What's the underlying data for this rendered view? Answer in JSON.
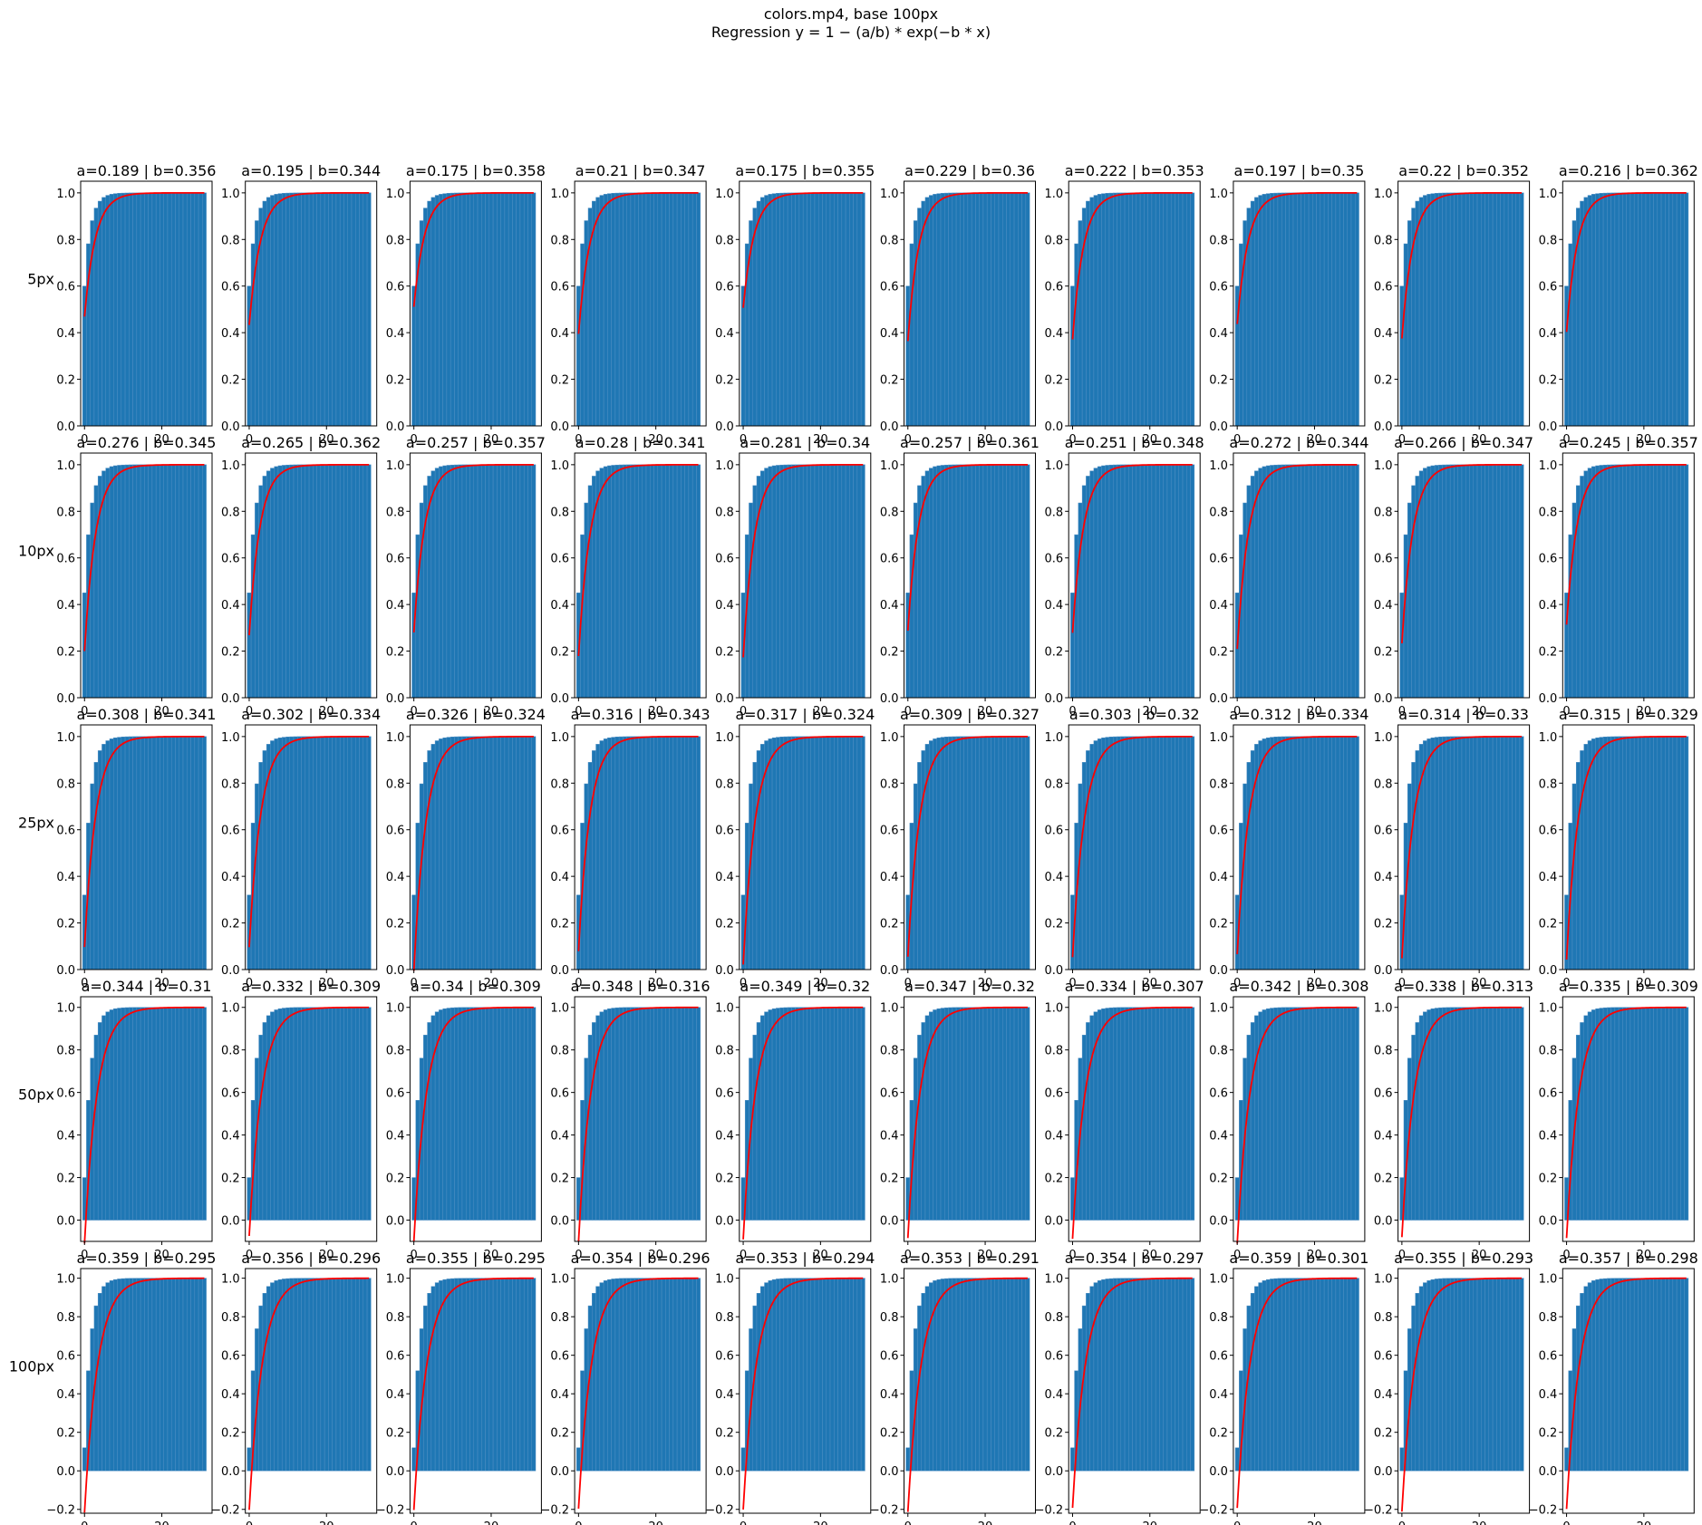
{
  "title_line1": "colors.mp4, base 100px",
  "title_line2": "Regression y = 1 − (a/b) * exp(−b * x)",
  "colors": {
    "bar": "#1f77b4",
    "bar_edge": "#4f8fc4",
    "fit": "#ff0000",
    "axis": "#000000"
  },
  "chart_data": {
    "type": "bar",
    "layout": "small multiples, 5 rows x 10 columns",
    "description_of_series": "cumulative bars over x = 0..32 with red fitted exponential curve",
    "x": {
      "ticks": [
        0,
        20
      ],
      "range": [
        -1,
        33
      ],
      "bar_count": 32
    },
    "rows": [
      {
        "label": "5px",
        "ylim": [
          0,
          1.05
        ],
        "yticks": [
          "0.0",
          "0.2",
          "0.4",
          "0.6",
          "0.8",
          "1.0"
        ],
        "first_bar": 0.6,
        "panels": [
          {
            "title": "a=0.189 | b=0.356",
            "a": 0.189,
            "b": 0.356
          },
          {
            "title": "a=0.195 | b=0.344",
            "a": 0.195,
            "b": 0.344
          },
          {
            "title": "a=0.175 | b=0.358",
            "a": 0.175,
            "b": 0.358
          },
          {
            "title": "a=0.21 | b=0.347",
            "a": 0.21,
            "b": 0.347
          },
          {
            "title": "a=0.175 | b=0.355",
            "a": 0.175,
            "b": 0.355
          },
          {
            "title": "a=0.229 | b=0.36",
            "a": 0.229,
            "b": 0.36
          },
          {
            "title": "a=0.222 | b=0.353",
            "a": 0.222,
            "b": 0.353
          },
          {
            "title": "a=0.197 | b=0.35",
            "a": 0.197,
            "b": 0.35
          },
          {
            "title": "a=0.22 | b=0.352",
            "a": 0.22,
            "b": 0.352
          },
          {
            "title": "a=0.216 | b=0.362",
            "a": 0.216,
            "b": 0.362
          }
        ]
      },
      {
        "label": "10px",
        "ylim": [
          0,
          1.05
        ],
        "yticks": [
          "0.0",
          "0.2",
          "0.4",
          "0.6",
          "0.8",
          "1.0"
        ],
        "first_bar": 0.45,
        "panels": [
          {
            "title": "a=0.276 | b=0.345",
            "a": 0.276,
            "b": 0.345
          },
          {
            "title": "a=0.265 | b=0.362",
            "a": 0.265,
            "b": 0.362
          },
          {
            "title": "a=0.257 | b=0.357",
            "a": 0.257,
            "b": 0.357
          },
          {
            "title": "a=0.28 | b=0.341",
            "a": 0.28,
            "b": 0.341
          },
          {
            "title": "a=0.281 | b=0.34",
            "a": 0.281,
            "b": 0.34
          },
          {
            "title": "a=0.257 | b=0.361",
            "a": 0.257,
            "b": 0.361
          },
          {
            "title": "a=0.251 | b=0.348",
            "a": 0.251,
            "b": 0.348
          },
          {
            "title": "a=0.272 | b=0.344",
            "a": 0.272,
            "b": 0.344
          },
          {
            "title": "a=0.266 | b=0.347",
            "a": 0.266,
            "b": 0.347
          },
          {
            "title": "a=0.245 | b=0.357",
            "a": 0.245,
            "b": 0.357
          }
        ]
      },
      {
        "label": "25px",
        "ylim": [
          0,
          1.05
        ],
        "yticks": [
          "0.0",
          "0.2",
          "0.4",
          "0.6",
          "0.8",
          "1.0"
        ],
        "first_bar": 0.32,
        "panels": [
          {
            "title": "a=0.308 | b=0.341",
            "a": 0.308,
            "b": 0.341
          },
          {
            "title": "a=0.302 | b=0.334",
            "a": 0.302,
            "b": 0.334
          },
          {
            "title": "a=0.326 | b=0.324",
            "a": 0.326,
            "b": 0.324
          },
          {
            "title": "a=0.316 | b=0.343",
            "a": 0.316,
            "b": 0.343
          },
          {
            "title": "a=0.317 | b=0.324",
            "a": 0.317,
            "b": 0.324
          },
          {
            "title": "a=0.309 | b=0.327",
            "a": 0.309,
            "b": 0.327
          },
          {
            "title": "a=0.303 | b=0.32",
            "a": 0.303,
            "b": 0.32
          },
          {
            "title": "a=0.312 | b=0.334",
            "a": 0.312,
            "b": 0.334
          },
          {
            "title": "a=0.314 | b=0.33",
            "a": 0.314,
            "b": 0.33
          },
          {
            "title": "a=0.315 | b=0.329",
            "a": 0.315,
            "b": 0.329
          }
        ]
      },
      {
        "label": "50px",
        "ylim": [
          -0.1,
          1.05
        ],
        "yticks": [
          "0.0",
          "0.2",
          "0.4",
          "0.6",
          "0.8",
          "1.0"
        ],
        "first_bar": 0.2,
        "panels": [
          {
            "title": "a=0.344 | b=0.31",
            "a": 0.344,
            "b": 0.31
          },
          {
            "title": "a=0.332 | b=0.309",
            "a": 0.332,
            "b": 0.309
          },
          {
            "title": "a=0.34 | b=0.309",
            "a": 0.34,
            "b": 0.309
          },
          {
            "title": "a=0.348 | b=0.316",
            "a": 0.348,
            "b": 0.316
          },
          {
            "title": "a=0.349 | b=0.32",
            "a": 0.349,
            "b": 0.32
          },
          {
            "title": "a=0.347 | b=0.32",
            "a": 0.347,
            "b": 0.32
          },
          {
            "title": "a=0.334 | b=0.307",
            "a": 0.334,
            "b": 0.307
          },
          {
            "title": "a=0.342 | b=0.308",
            "a": 0.342,
            "b": 0.308
          },
          {
            "title": "a=0.338 | b=0.313",
            "a": 0.338,
            "b": 0.313
          },
          {
            "title": "a=0.335 | b=0.309",
            "a": 0.335,
            "b": 0.309
          }
        ]
      },
      {
        "label": "100px",
        "ylim": [
          -0.22,
          1.05
        ],
        "yticks": [
          "−0.2",
          "0.0",
          "0.2",
          "0.4",
          "0.6",
          "0.8",
          "1.0"
        ],
        "first_bar": 0.12,
        "panels": [
          {
            "title": "a=0.359 | b=0.295",
            "a": 0.359,
            "b": 0.295
          },
          {
            "title": "a=0.356 | b=0.296",
            "a": 0.356,
            "b": 0.296
          },
          {
            "title": "a=0.355 | b=0.295",
            "a": 0.355,
            "b": 0.295
          },
          {
            "title": "a=0.354 | b=0.296",
            "a": 0.354,
            "b": 0.296
          },
          {
            "title": "a=0.353 | b=0.294",
            "a": 0.353,
            "b": 0.294
          },
          {
            "title": "a=0.353 | b=0.291",
            "a": 0.353,
            "b": 0.291
          },
          {
            "title": "a=0.354 | b=0.297",
            "a": 0.354,
            "b": 0.297
          },
          {
            "title": "a=0.359 | b=0.301",
            "a": 0.359,
            "b": 0.301
          },
          {
            "title": "a=0.355 | b=0.293",
            "a": 0.355,
            "b": 0.293
          },
          {
            "title": "a=0.357 | b=0.298",
            "a": 0.357,
            "b": 0.298
          }
        ]
      }
    ]
  }
}
